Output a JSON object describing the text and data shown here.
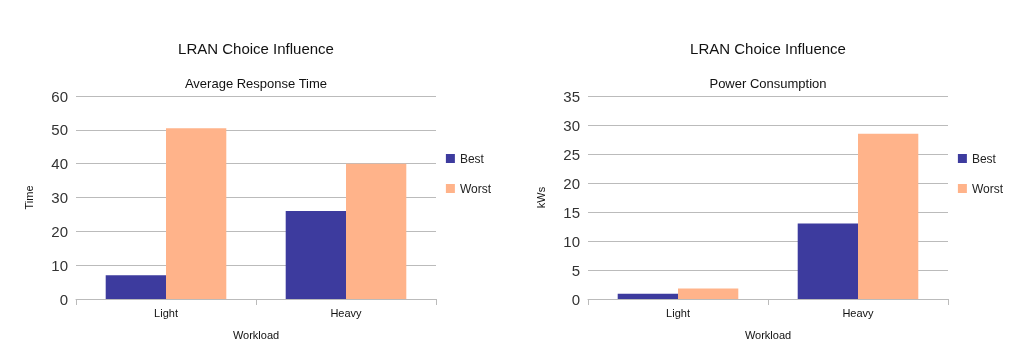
{
  "chart_data": [
    {
      "type": "bar",
      "title": "LRAN Choice Influence",
      "subtitle": "Average Response Time",
      "xlabel": "Workload",
      "ylabel": "Time",
      "categories": [
        "Light",
        "Heavy"
      ],
      "series": [
        {
          "name": "Best",
          "color": "#3d3b9e",
          "values": [
            7,
            26
          ]
        },
        {
          "name": "Worst",
          "color": "#ffb38a",
          "values": [
            50.5,
            40
          ]
        }
      ],
      "ylim": [
        0,
        60
      ],
      "yticks": [
        0,
        10,
        20,
        30,
        40,
        50,
        60
      ],
      "grid": "y",
      "legend": "right"
    },
    {
      "type": "bar",
      "title": "LRAN Choice Influence",
      "subtitle": "Power Consumption",
      "xlabel": "Workload",
      "ylabel": "kWs",
      "categories": [
        "Light",
        "Heavy"
      ],
      "series": [
        {
          "name": "Best",
          "color": "#3d3b9e",
          "values": [
            0.9,
            13
          ]
        },
        {
          "name": "Worst",
          "color": "#ffb38a",
          "values": [
            1.8,
            28.5
          ]
        }
      ],
      "ylim": [
        0,
        35
      ],
      "yticks": [
        0,
        5,
        10,
        15,
        20,
        25,
        30,
        35
      ],
      "grid": "y",
      "legend": "right"
    }
  ]
}
